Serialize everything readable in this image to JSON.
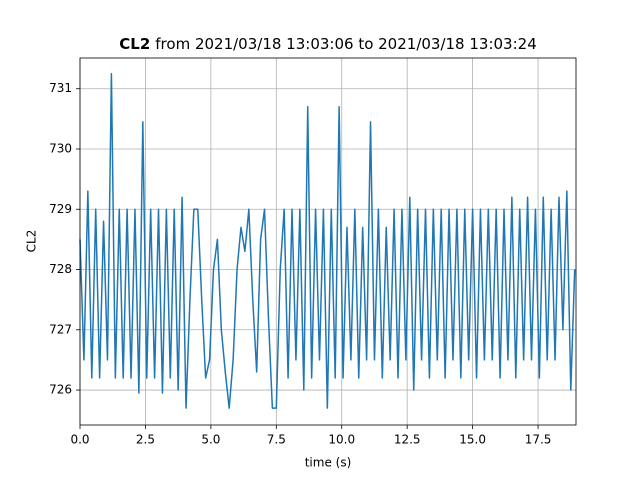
{
  "chart_data": {
    "type": "line",
    "title_bold": "CL2",
    "title": "from 2021/03/18 13:03:06 to 2021/03/18 13:03:24",
    "xlabel": "time (s)",
    "ylabel": "CL2",
    "xlim": [
      0,
      18.95
    ],
    "ylim": [
      725.42,
      731.51
    ],
    "xticks": [
      {
        "value": 0,
        "label": "0.0"
      },
      2.5,
      {
        "value": 5,
        "label": "5.0"
      },
      7.5,
      {
        "value": 10,
        "label": "10.0"
      },
      12.5,
      {
        "value": 15,
        "label": "15.0"
      },
      17.5
    ],
    "yticks": [
      726,
      727,
      728,
      729,
      730,
      731
    ],
    "grid": true,
    "x": [
      0,
      0.15,
      0.3,
      0.45,
      0.6,
      0.75,
      0.9,
      1.05,
      1.2,
      1.35,
      1.5,
      1.65,
      1.8,
      1.95,
      2.1,
      2.25,
      2.4,
      2.55,
      2.7,
      2.85,
      3.0,
      3.15,
      3.3,
      3.45,
      3.6,
      3.75,
      3.9,
      4.05,
      4.2,
      4.35,
      4.5,
      4.65,
      4.8,
      4.95,
      5.1,
      5.25,
      5.4,
      5.55,
      5.7,
      5.85,
      6.0,
      6.15,
      6.3,
      6.45,
      6.6,
      6.75,
      6.9,
      7.05,
      7.2,
      7.35,
      7.5,
      7.65,
      7.8,
      7.95,
      8.1,
      8.25,
      8.4,
      8.55,
      8.7,
      8.85,
      9.0,
      9.15,
      9.3,
      9.45,
      9.6,
      9.75,
      9.9,
      10.05,
      10.2,
      10.35,
      10.5,
      10.65,
      10.8,
      10.95,
      11.1,
      11.25,
      11.4,
      11.55,
      11.7,
      11.85,
      12.0,
      12.15,
      12.3,
      12.45,
      12.6,
      12.75,
      12.9,
      13.05,
      13.2,
      13.35,
      13.5,
      13.65,
      13.8,
      13.95,
      14.1,
      14.25,
      14.4,
      14.55,
      14.7,
      14.85,
      15.0,
      15.15,
      15.3,
      15.45,
      15.6,
      15.75,
      15.9,
      16.05,
      16.2,
      16.35,
      16.5,
      16.65,
      16.8,
      16.95,
      17.1,
      17.25,
      17.4,
      17.55,
      17.7,
      17.85,
      18.0,
      18.15,
      18.3,
      18.45,
      18.6,
      18.75,
      18.9
    ],
    "series": [
      {
        "name": "CL2",
        "color": "#1f77b4",
        "values": [
          728.5,
          726.5,
          729.3,
          726.2,
          729.0,
          726.2,
          728.8,
          726.5,
          731.25,
          726.2,
          729.0,
          726.2,
          729.0,
          726.2,
          729.0,
          725.95,
          730.45,
          726.2,
          729.0,
          726.2,
          729.0,
          725.95,
          729.0,
          726.2,
          729.0,
          726.0,
          729.2,
          725.7,
          727.5,
          729.0,
          729.0,
          727.5,
          726.2,
          726.5,
          728.0,
          728.5,
          727.0,
          726.3,
          725.7,
          726.5,
          728.0,
          728.7,
          728.3,
          729.0,
          727.5,
          726.3,
          728.5,
          729.0,
          727.2,
          725.7,
          725.7,
          728.0,
          729.0,
          726.2,
          729.0,
          726.5,
          729.0,
          726.0,
          730.7,
          726.2,
          729.0,
          726.5,
          729.0,
          725.7,
          729.0,
          726.2,
          730.7,
          726.2,
          728.7,
          726.5,
          729.0,
          726.2,
          728.7,
          726.5,
          730.45,
          726.5,
          729.0,
          726.2,
          728.7,
          726.5,
          729.0,
          726.2,
          729.0,
          726.5,
          729.2,
          726.0,
          729.0,
          726.5,
          729.0,
          726.2,
          729.0,
          726.5,
          729.0,
          726.2,
          729.0,
          726.5,
          729.0,
          726.2,
          729.0,
          726.5,
          729.0,
          726.2,
          729.0,
          726.5,
          729.0,
          726.5,
          729.0,
          726.2,
          729.0,
          726.5,
          729.2,
          726.2,
          729.0,
          726.5,
          729.2,
          726.5,
          729.0,
          726.2,
          729.2,
          726.5,
          729.0,
          726.5,
          729.2,
          727.0,
          729.3,
          726.0,
          728.0
        ]
      }
    ]
  }
}
